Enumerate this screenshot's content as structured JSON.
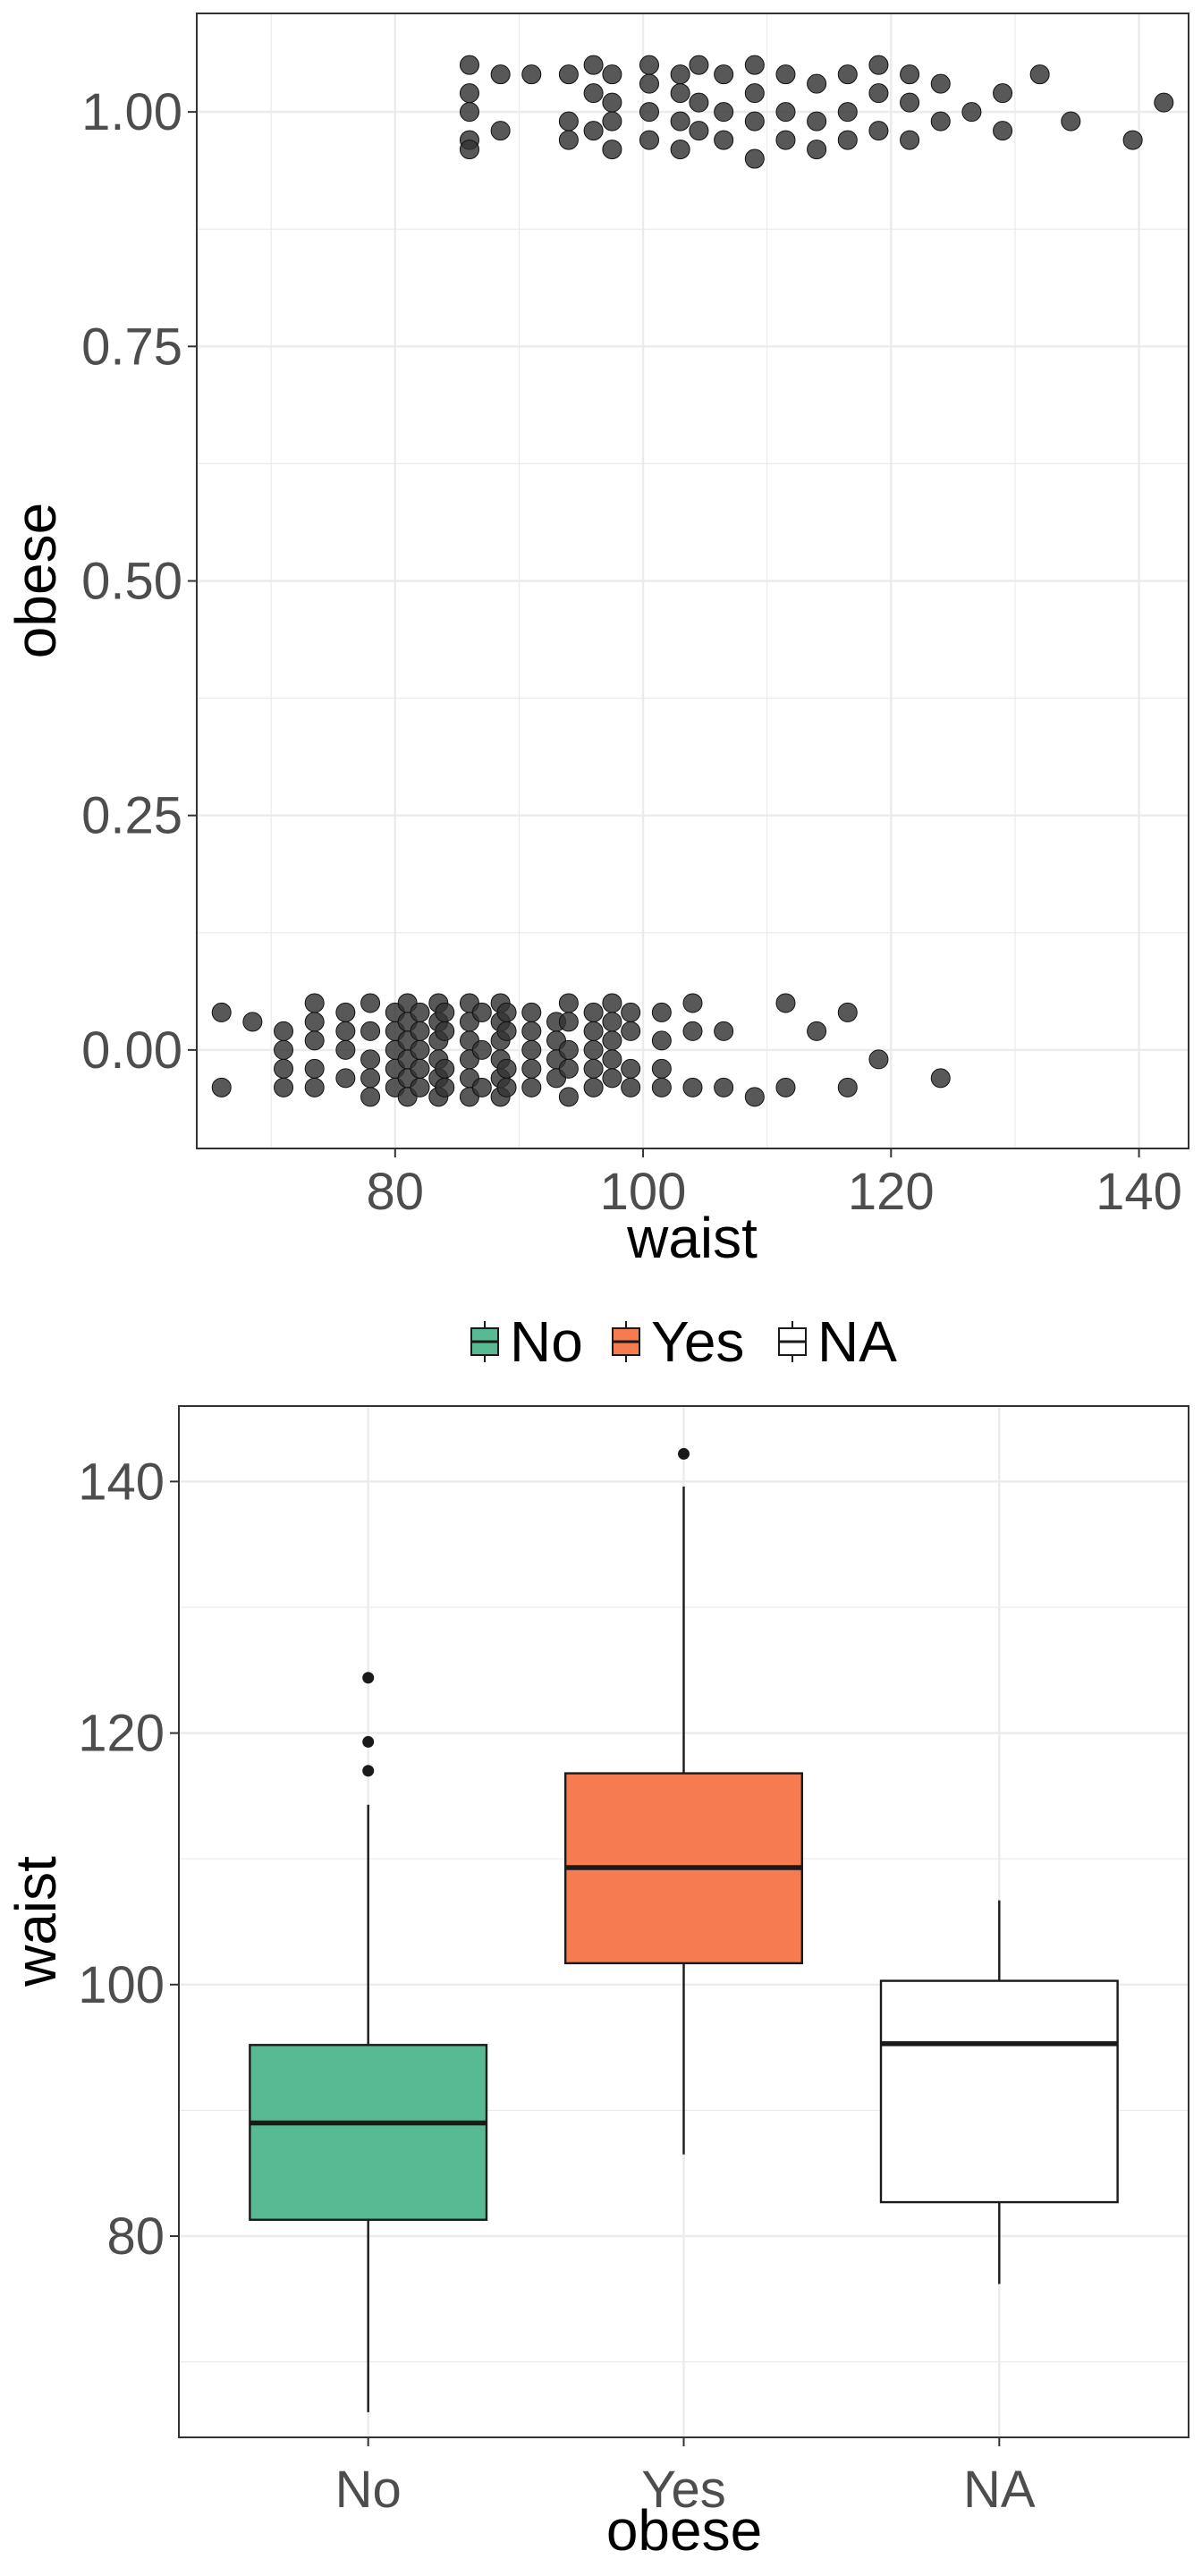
{
  "chart_data": [
    {
      "type": "scatter",
      "title": "",
      "xlabel": "waist",
      "ylabel": "obese",
      "xlim": [
        64,
        144
      ],
      "ylim": [
        -0.105,
        1.105
      ],
      "x_ticks": [
        80,
        100,
        120,
        140
      ],
      "x_tick_labels": [
        "80",
        "100",
        "120",
        "140"
      ],
      "y_ticks": [
        0.0,
        0.25,
        0.5,
        0.75,
        1.0
      ],
      "y_tick_labels": [
        "0.00",
        "0.25",
        "0.50",
        "0.75",
        "1.00"
      ],
      "grid": true,
      "point_color": "#333333",
      "points": [
        [
          66.0,
          0.04
        ],
        [
          66.0,
          -0.04
        ],
        [
          68.5,
          0.03
        ],
        [
          71.0,
          0.02
        ],
        [
          71.0,
          0.0
        ],
        [
          71.0,
          -0.02
        ],
        [
          71.0,
          -0.04
        ],
        [
          73.5,
          0.05
        ],
        [
          73.5,
          0.03
        ],
        [
          73.5,
          0.01
        ],
        [
          73.5,
          -0.02
        ],
        [
          73.5,
          -0.04
        ],
        [
          76.0,
          0.04
        ],
        [
          76.0,
          0.02
        ],
        [
          76.0,
          0.0
        ],
        [
          76.0,
          -0.03
        ],
        [
          78.0,
          0.05
        ],
        [
          78.0,
          0.02
        ],
        [
          78.0,
          -0.01
        ],
        [
          78.0,
          -0.03
        ],
        [
          78.0,
          -0.05
        ],
        [
          80.0,
          0.04
        ],
        [
          80.0,
          0.02
        ],
        [
          80.0,
          0.0
        ],
        [
          80.0,
          -0.02
        ],
        [
          80.0,
          -0.04
        ],
        [
          81.0,
          0.05
        ],
        [
          81.0,
          0.03
        ],
        [
          81.0,
          0.01
        ],
        [
          81.0,
          -0.01
        ],
        [
          81.0,
          -0.03
        ],
        [
          81.0,
          -0.05
        ],
        [
          82.0,
          0.04
        ],
        [
          82.0,
          0.02
        ],
        [
          82.0,
          0.0
        ],
        [
          82.0,
          -0.02
        ],
        [
          82.0,
          -0.04
        ],
        [
          83.5,
          0.05
        ],
        [
          83.5,
          0.03
        ],
        [
          83.5,
          0.01
        ],
        [
          83.5,
          -0.01
        ],
        [
          83.5,
          -0.03
        ],
        [
          83.5,
          -0.05
        ],
        [
          84.0,
          0.04
        ],
        [
          84.0,
          0.02
        ],
        [
          84.0,
          -0.02
        ],
        [
          84.0,
          -0.04
        ],
        [
          86.0,
          0.05
        ],
        [
          86.0,
          0.03
        ],
        [
          86.0,
          0.01
        ],
        [
          86.0,
          -0.01
        ],
        [
          86.0,
          -0.03
        ],
        [
          86.0,
          -0.05
        ],
        [
          87.0,
          0.04
        ],
        [
          87.0,
          0.0
        ],
        [
          87.0,
          -0.04
        ],
        [
          88.5,
          0.05
        ],
        [
          88.5,
          0.03
        ],
        [
          88.5,
          0.01
        ],
        [
          88.5,
          -0.01
        ],
        [
          88.5,
          -0.03
        ],
        [
          88.5,
          -0.05
        ],
        [
          89.0,
          0.04
        ],
        [
          89.0,
          0.02
        ],
        [
          89.0,
          -0.02
        ],
        [
          89.0,
          -0.04
        ],
        [
          91.0,
          0.04
        ],
        [
          91.0,
          0.02
        ],
        [
          91.0,
          0.0
        ],
        [
          91.0,
          -0.02
        ],
        [
          91.0,
          -0.04
        ],
        [
          93.0,
          0.03
        ],
        [
          93.0,
          0.01
        ],
        [
          93.0,
          -0.01
        ],
        [
          93.0,
          -0.03
        ],
        [
          94.0,
          0.05
        ],
        [
          94.0,
          0.03
        ],
        [
          94.0,
          0.0
        ],
        [
          94.0,
          -0.02
        ],
        [
          94.0,
          -0.05
        ],
        [
          96.0,
          0.04
        ],
        [
          96.0,
          0.02
        ],
        [
          96.0,
          0.0
        ],
        [
          96.0,
          -0.02
        ],
        [
          96.0,
          -0.04
        ],
        [
          97.5,
          0.05
        ],
        [
          97.5,
          0.03
        ],
        [
          97.5,
          0.01
        ],
        [
          97.5,
          -0.01
        ],
        [
          97.5,
          -0.03
        ],
        [
          99.0,
          0.04
        ],
        [
          99.0,
          0.02
        ],
        [
          99.0,
          -0.02
        ],
        [
          99.0,
          -0.04
        ],
        [
          101.5,
          0.04
        ],
        [
          101.5,
          0.01
        ],
        [
          101.5,
          -0.02
        ],
        [
          101.5,
          -0.04
        ],
        [
          104.0,
          0.05
        ],
        [
          104.0,
          0.02
        ],
        [
          104.0,
          -0.04
        ],
        [
          106.5,
          0.02
        ],
        [
          106.5,
          -0.04
        ],
        [
          109.0,
          -0.05
        ],
        [
          111.5,
          0.05
        ],
        [
          111.5,
          -0.04
        ],
        [
          114.0,
          0.02
        ],
        [
          116.5,
          0.04
        ],
        [
          116.5,
          -0.04
        ],
        [
          119.0,
          -0.01
        ],
        [
          124.0,
          -0.03
        ],
        [
          86.0,
          1.05
        ],
        [
          86.0,
          1.02
        ],
        [
          86.0,
          1.0
        ],
        [
          86.0,
          0.97
        ],
        [
          86.0,
          0.96
        ],
        [
          88.5,
          1.04
        ],
        [
          88.5,
          0.98
        ],
        [
          91.0,
          1.04
        ],
        [
          94.0,
          1.04
        ],
        [
          94.0,
          0.99
        ],
        [
          94.0,
          0.97
        ],
        [
          96.0,
          1.05
        ],
        [
          96.0,
          1.02
        ],
        [
          96.0,
          0.98
        ],
        [
          97.5,
          1.04
        ],
        [
          97.5,
          1.01
        ],
        [
          97.5,
          0.99
        ],
        [
          97.5,
          0.96
        ],
        [
          100.5,
          1.05
        ],
        [
          100.5,
          1.03
        ],
        [
          100.5,
          1.0
        ],
        [
          100.5,
          0.97
        ],
        [
          103.0,
          1.04
        ],
        [
          103.0,
          1.02
        ],
        [
          103.0,
          0.99
        ],
        [
          103.0,
          0.96
        ],
        [
          104.5,
          1.05
        ],
        [
          104.5,
          1.01
        ],
        [
          104.5,
          0.98
        ],
        [
          106.5,
          1.04
        ],
        [
          106.5,
          1.0
        ],
        [
          106.5,
          0.97
        ],
        [
          109.0,
          1.05
        ],
        [
          109.0,
          1.02
        ],
        [
          109.0,
          0.99
        ],
        [
          109.0,
          0.95
        ],
        [
          111.5,
          1.04
        ],
        [
          111.5,
          1.0
        ],
        [
          111.5,
          0.97
        ],
        [
          114.0,
          1.03
        ],
        [
          114.0,
          0.99
        ],
        [
          114.0,
          0.96
        ],
        [
          116.5,
          1.04
        ],
        [
          116.5,
          1.0
        ],
        [
          116.5,
          0.97
        ],
        [
          119.0,
          1.05
        ],
        [
          119.0,
          1.02
        ],
        [
          119.0,
          0.98
        ],
        [
          121.5,
          1.04
        ],
        [
          121.5,
          1.01
        ],
        [
          121.5,
          0.97
        ],
        [
          124.0,
          1.03
        ],
        [
          124.0,
          0.99
        ],
        [
          126.5,
          1.0
        ],
        [
          129.0,
          1.02
        ],
        [
          129.0,
          0.98
        ],
        [
          132.0,
          1.04
        ],
        [
          134.5,
          0.99
        ],
        [
          139.5,
          0.97
        ],
        [
          142.0,
          1.01
        ]
      ]
    },
    {
      "type": "box",
      "title": "",
      "xlabel": "obese",
      "ylabel": "waist",
      "ylim": [
        64,
        146
      ],
      "y_ticks": [
        80,
        100,
        120,
        140
      ],
      "y_tick_labels": [
        "80",
        "100",
        "120",
        "140"
      ],
      "grid": true,
      "legend_position": "top",
      "legend": [
        {
          "label": "No",
          "color": "#57ba92"
        },
        {
          "label": "Yes",
          "color": "#f77b51"
        },
        {
          "label": "NA",
          "color": "#ffffff"
        }
      ],
      "categories": [
        "No",
        "Yes",
        "NA"
      ],
      "boxes": [
        {
          "category": "No",
          "whisker_low": 66,
          "q1": 81.3,
          "median": 89,
          "q3": 95.2,
          "whisker_high": 114.3,
          "outliers": [
            117,
            119.3,
            124.4
          ],
          "fill": "#57ba92"
        },
        {
          "category": "Yes",
          "whisker_low": 86.5,
          "q1": 101.7,
          "median": 109.3,
          "q3": 116.8,
          "whisker_high": 139.6,
          "outliers": [
            142.2
          ],
          "fill": "#f77b51"
        },
        {
          "category": "NA",
          "whisker_low": 76.2,
          "q1": 82.7,
          "median": 95.3,
          "q3": 100.3,
          "whisker_high": 106.7,
          "outliers": [],
          "fill": "#ffffff"
        }
      ]
    }
  ]
}
